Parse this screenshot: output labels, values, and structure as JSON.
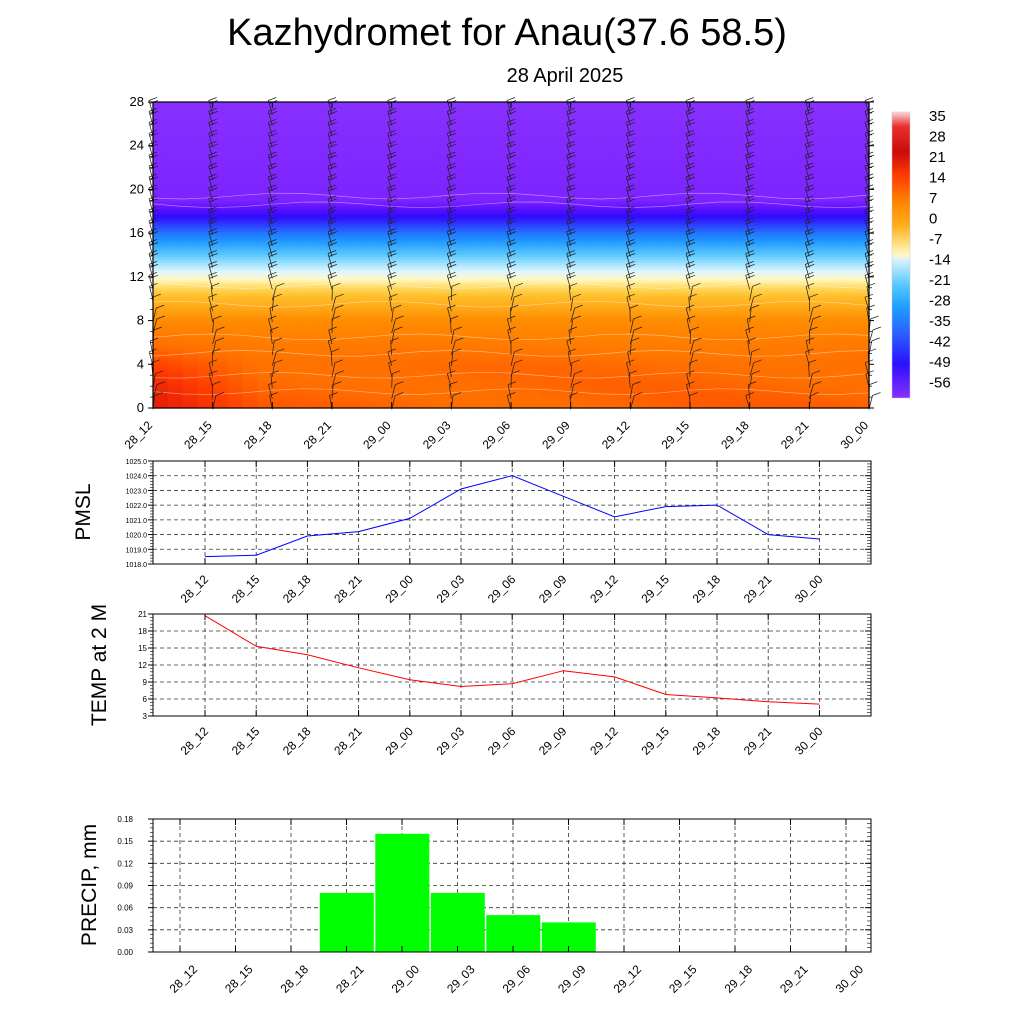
{
  "title": "Kazhydromet for Anau(37.6 58.5)",
  "subtitle": "28 April 2025",
  "time_labels": [
    "28_12",
    "28_15",
    "28_18",
    "28_21",
    "29_00",
    "29_03",
    "29_06",
    "29_09",
    "29_12",
    "29_15",
    "29_18",
    "29_21",
    "30_00"
  ],
  "chart_data": [
    {
      "type": "heatmap",
      "title": "",
      "xlabel": "",
      "ylabel": "",
      "x": [
        "28_12",
        "28_15",
        "28_18",
        "28_21",
        "29_00",
        "29_03",
        "29_06",
        "29_09",
        "29_12",
        "29_15",
        "29_18",
        "29_21",
        "30_00"
      ],
      "y_ticks": [
        0,
        4,
        8,
        12,
        16,
        20,
        24,
        28
      ],
      "ylim": [
        0,
        28
      ],
      "colorbar_labels": [
        "35",
        "28",
        "21",
        "14",
        "7",
        "0",
        "-7",
        "-14",
        "-21",
        "-28",
        "-35",
        "-42",
        "-49",
        "-56"
      ],
      "colorbar_range": [
        -60,
        38
      ],
      "temperature_profile": [
        {
          "level": 0,
          "value": 10
        },
        {
          "level": 4,
          "value": 9
        },
        {
          "level": 8,
          "value": 4
        },
        {
          "level": 10,
          "value": -4
        },
        {
          "level": 11.6,
          "value": -12
        },
        {
          "level": 12.5,
          "value": -16
        },
        {
          "level": 14,
          "value": -26
        },
        {
          "level": 16,
          "value": -38
        },
        {
          "level": 17.5,
          "value": -50
        },
        {
          "level": 19,
          "value": -58
        },
        {
          "level": 28,
          "value": -60
        }
      ],
      "wind_barbs": true
    },
    {
      "type": "line",
      "ylabel": "PMSL",
      "categories": [
        "28_12",
        "28_15",
        "28_18",
        "28_21",
        "29_00",
        "29_03",
        "29_06",
        "29_09",
        "29_12",
        "29_15",
        "29_18",
        "29_21",
        "30_00"
      ],
      "series": [
        {
          "values": [
            1018.5,
            1018.6,
            1019.9,
            1020.2,
            1021.1,
            1023.1,
            1024.0,
            1022.6,
            1021.2,
            1021.9,
            1022.0,
            1020.0,
            1019.7
          ],
          "color": "#0000ff"
        }
      ],
      "ylim": [
        1018.0,
        1025.0
      ],
      "y_ticks": [
        "1018.0",
        "1019.0",
        "1020.0",
        "1021.0",
        "1022.0",
        "1023.0",
        "1024.0",
        "1025.0"
      ],
      "grid": true
    },
    {
      "type": "line",
      "ylabel": "TEMP at 2 M",
      "categories": [
        "28_12",
        "28_15",
        "28_18",
        "28_21",
        "29_00",
        "29_03",
        "29_06",
        "29_09",
        "29_12",
        "29_15",
        "29_18",
        "29_21",
        "30_00"
      ],
      "series": [
        {
          "values": [
            20.7,
            15.3,
            13.8,
            11.5,
            9.4,
            8.2,
            8.7,
            11.0,
            9.9,
            6.8,
            6.2,
            5.5,
            5.1
          ],
          "color": "#ff0000"
        }
      ],
      "ylim": [
        3,
        21
      ],
      "y_ticks": [
        "3",
        "6",
        "9",
        "12",
        "15",
        "18",
        "21"
      ],
      "grid": true
    },
    {
      "type": "bar",
      "ylabel": "PRECIP, mm",
      "categories": [
        "28_12",
        "28_15",
        "28_18",
        "28_21",
        "29_00",
        "29_03",
        "29_06",
        "29_09",
        "29_12",
        "29_15",
        "29_18",
        "29_21",
        "30_00"
      ],
      "values": [
        0,
        0,
        0.08,
        0.16,
        0.08,
        0.05,
        0.04,
        0,
        0,
        0,
        0,
        0,
        0
      ],
      "color": "#00ff00",
      "ylim": [
        0,
        0.18
      ],
      "y_ticks": [
        "0.00",
        "0.03",
        "0.06",
        "0.09",
        "0.12",
        "0.15",
        "0.18"
      ],
      "grid": true
    }
  ]
}
